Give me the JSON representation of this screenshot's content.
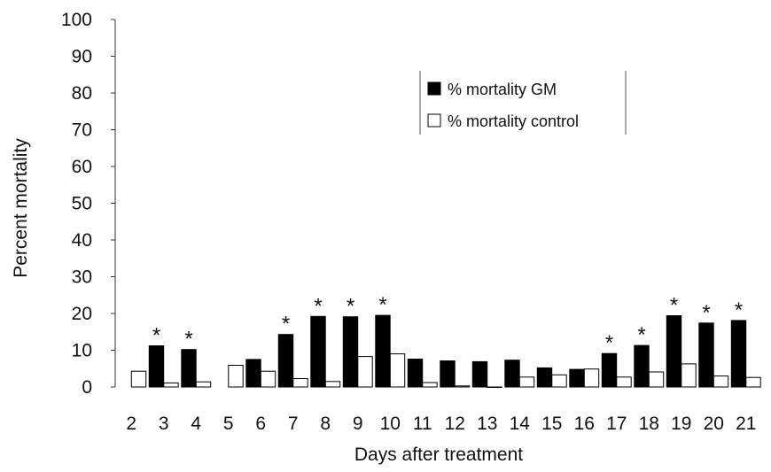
{
  "chart_data": {
    "type": "bar",
    "xlabel": "Days after treatment",
    "ylabel": "Percent mortality",
    "ylim": [
      0,
      100
    ],
    "yticks": [
      0,
      10,
      20,
      30,
      40,
      50,
      60,
      70,
      80,
      90,
      100
    ],
    "categories": [
      "2",
      "3",
      "4",
      "5",
      "6",
      "7",
      "8",
      "9",
      "10",
      "11",
      "12",
      "13",
      "14",
      "15",
      "16",
      "17",
      "18",
      "19",
      "20",
      "21"
    ],
    "series": [
      {
        "name": "% mortality GM",
        "color": "#000000",
        "values": [
          null,
          11.2,
          10.2,
          null,
          7.5,
          14.3,
          19.2,
          19.1,
          19.5,
          7.6,
          7.1,
          6.9,
          7.3,
          5.2,
          4.8,
          9.1,
          11.3,
          19.4,
          17.4,
          18.1
        ]
      },
      {
        "name": "% mortality control",
        "color": "#ffffff",
        "values": [
          4.3,
          1.1,
          1.4,
          5.9,
          4.3,
          2.3,
          1.5,
          8.3,
          9.0,
          1.2,
          0.3,
          0,
          2.7,
          3.3,
          4.9,
          2.7,
          4.1,
          6.3,
          3.0,
          2.6
        ]
      }
    ],
    "significance_markers": {
      "symbol": "*",
      "categories": [
        "3",
        "4",
        "7",
        "8",
        "9",
        "10",
        "17",
        "18",
        "19",
        "20",
        "21"
      ]
    },
    "legend": {
      "position": "top-right"
    },
    "grid": false
  }
}
